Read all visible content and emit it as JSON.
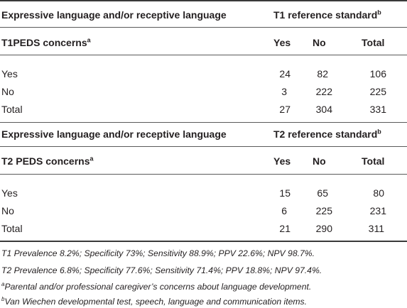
{
  "table1": {
    "header_left": "Expressive language and/or receptive language",
    "header_right": "T1 reference standard",
    "header_right_sup": "b",
    "sub_left": "T1PEDS concerns",
    "sub_left_sup": "a",
    "col_yes": "Yes",
    "col_no": "No",
    "col_total": "Total",
    "rows": [
      {
        "label": "Yes",
        "yes": "24",
        "no": "82",
        "total": "106"
      },
      {
        "label": "No",
        "yes": "3",
        "no": "222",
        "total": "225"
      },
      {
        "label": "Total",
        "yes": "27",
        "no": "304",
        "total": "331"
      }
    ]
  },
  "table2": {
    "header_left": "Expressive language and/or receptive language",
    "header_right": "T2 reference standard",
    "header_right_sup": "b",
    "sub_left": "T2 PEDS concerns",
    "sub_left_sup": "a",
    "col_yes": "Yes",
    "col_no": "No",
    "col_total": "Total",
    "rows": [
      {
        "label": "Yes",
        "yes": "15",
        "no": "65",
        "total": "80"
      },
      {
        "label": "No",
        "yes": "6",
        "no": "225",
        "total": "231"
      },
      {
        "label": "Total",
        "yes": "21",
        "no": "290",
        "total": "311"
      }
    ]
  },
  "footnotes": {
    "line1": "T1 Prevalence 8.2%; Specificity 73%; Sensitivity 88.9%; PPV 22.6%; NPV 98.7%.",
    "line2": "T2 Prevalence 6.8%; Specificity 77.6%; Sensitivity 71.4%; PPV 18.8%; NPV 97.4%.",
    "line3_marker": "a",
    "line3": "Parental and/or professional caregiver’s concerns about language development.",
    "line4_marker": "b",
    "line4": "Van Wiechen developmental test, speech, language and communication items."
  }
}
